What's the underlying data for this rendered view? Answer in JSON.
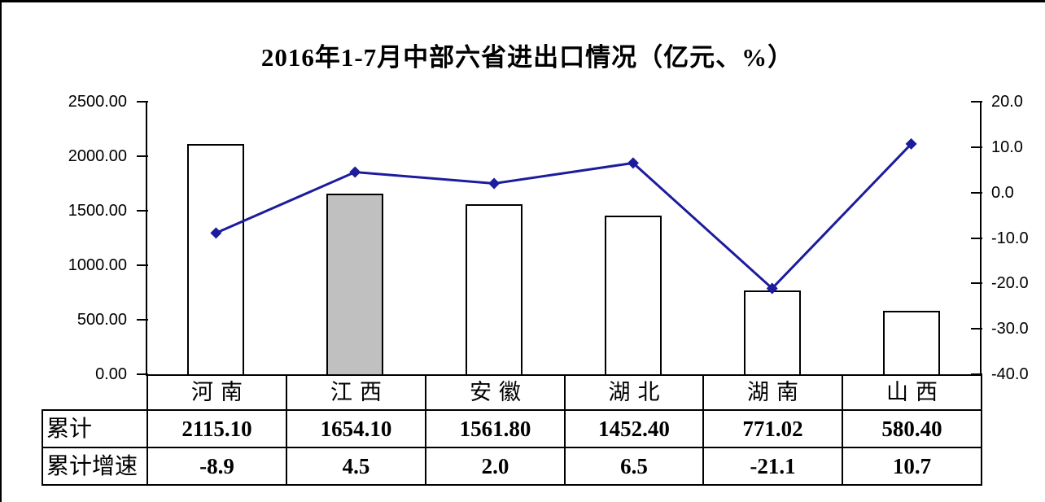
{
  "title": "2016年1-7月中部六省进出口情况（亿元、%）",
  "chart_data": {
    "type": "bar+line",
    "title": "2016年1-7月中部六省进出口情况（亿元、%）",
    "categories": [
      "河南",
      "江西",
      "安徽",
      "湖北",
      "湖南",
      "山西"
    ],
    "series": [
      {
        "name": "累计",
        "type": "bar",
        "axis": "left",
        "values": [
          "2115.10",
          "1654.10",
          "1561.80",
          "1452.40",
          "771.02",
          "580.40"
        ]
      },
      {
        "name": "累计增速",
        "type": "line",
        "axis": "right",
        "values": [
          "-8.9",
          "4.5",
          "2.0",
          "6.5",
          "-21.1",
          "10.7"
        ]
      }
    ],
    "left_axis": {
      "min": 0,
      "max": 2500,
      "tick_labels": [
        "2500.00",
        "2000.00",
        "1500.00",
        "1000.00",
        "500.00",
        "0.00"
      ]
    },
    "right_axis": {
      "min": -40,
      "max": 20,
      "tick_labels": [
        "20.0",
        "10.0",
        "0.0",
        "-10.0",
        "-20.0",
        "-30.0",
        "-40.0"
      ]
    },
    "grid": false,
    "legend": "none",
    "highlight_index": 1,
    "colors": {
      "bar_fill": "#ffffff",
      "bar_highlight_fill": "#c0c0c0",
      "bar_border": "#000000",
      "line": "#1c1c9c",
      "axis": "#000000"
    }
  },
  "table": {
    "column_headers": [
      "河南",
      "江西",
      "安徽",
      "湖北",
      "湖南",
      "山西"
    ],
    "rows": [
      {
        "label": "累计",
        "values": [
          "2115.10",
          "1654.10",
          "1561.80",
          "1452.40",
          "771.02",
          "580.40"
        ]
      },
      {
        "label": "累计增速",
        "values": [
          "-8.9",
          "4.5",
          "2.0",
          "6.5",
          "-21.1",
          "10.7"
        ]
      }
    ]
  }
}
